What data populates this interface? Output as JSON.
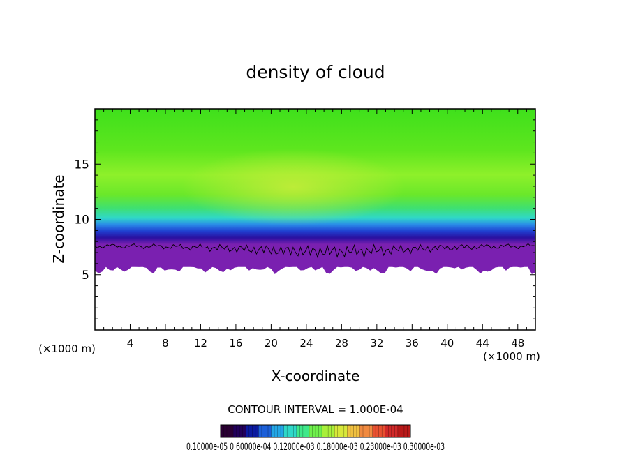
{
  "chart_data": {
    "type": "heatmap",
    "title": "density of cloud",
    "xlabel": "X-coordinate",
    "ylabel": "Z-coordinate",
    "x_unit": "(×1000 m)",
    "x_unit_right": "(×1000 m)",
    "xlim": [
      0,
      50
    ],
    "ylim": [
      0,
      20
    ],
    "x_ticks": [
      4,
      8,
      12,
      16,
      20,
      24,
      28,
      32,
      36,
      40,
      44,
      48
    ],
    "y_ticks": [
      5,
      10,
      15
    ],
    "contour_interval_label": "CONTOUR INTERVAL = 1.000E-04",
    "colorbar": {
      "label_text": "0.10000e-05 0.60000e-04 0.12000e-03 0.18000e-03 0.23000e-03 0.30000e-03",
      "colors": [
        "#2a0033",
        "#22005a",
        "#0b1aa0",
        "#1c5fd8",
        "#23a6e6",
        "#2fd8c8",
        "#3fe88a",
        "#6ff04c",
        "#a8f03a",
        "#d8e83a",
        "#f0c040",
        "#f08a40",
        "#e85030",
        "#d02828",
        "#b81818"
      ]
    },
    "field": {
      "cloud_base_z": 5.7,
      "cloud_top_z": 20,
      "contour_level_z": 7.6
    }
  }
}
